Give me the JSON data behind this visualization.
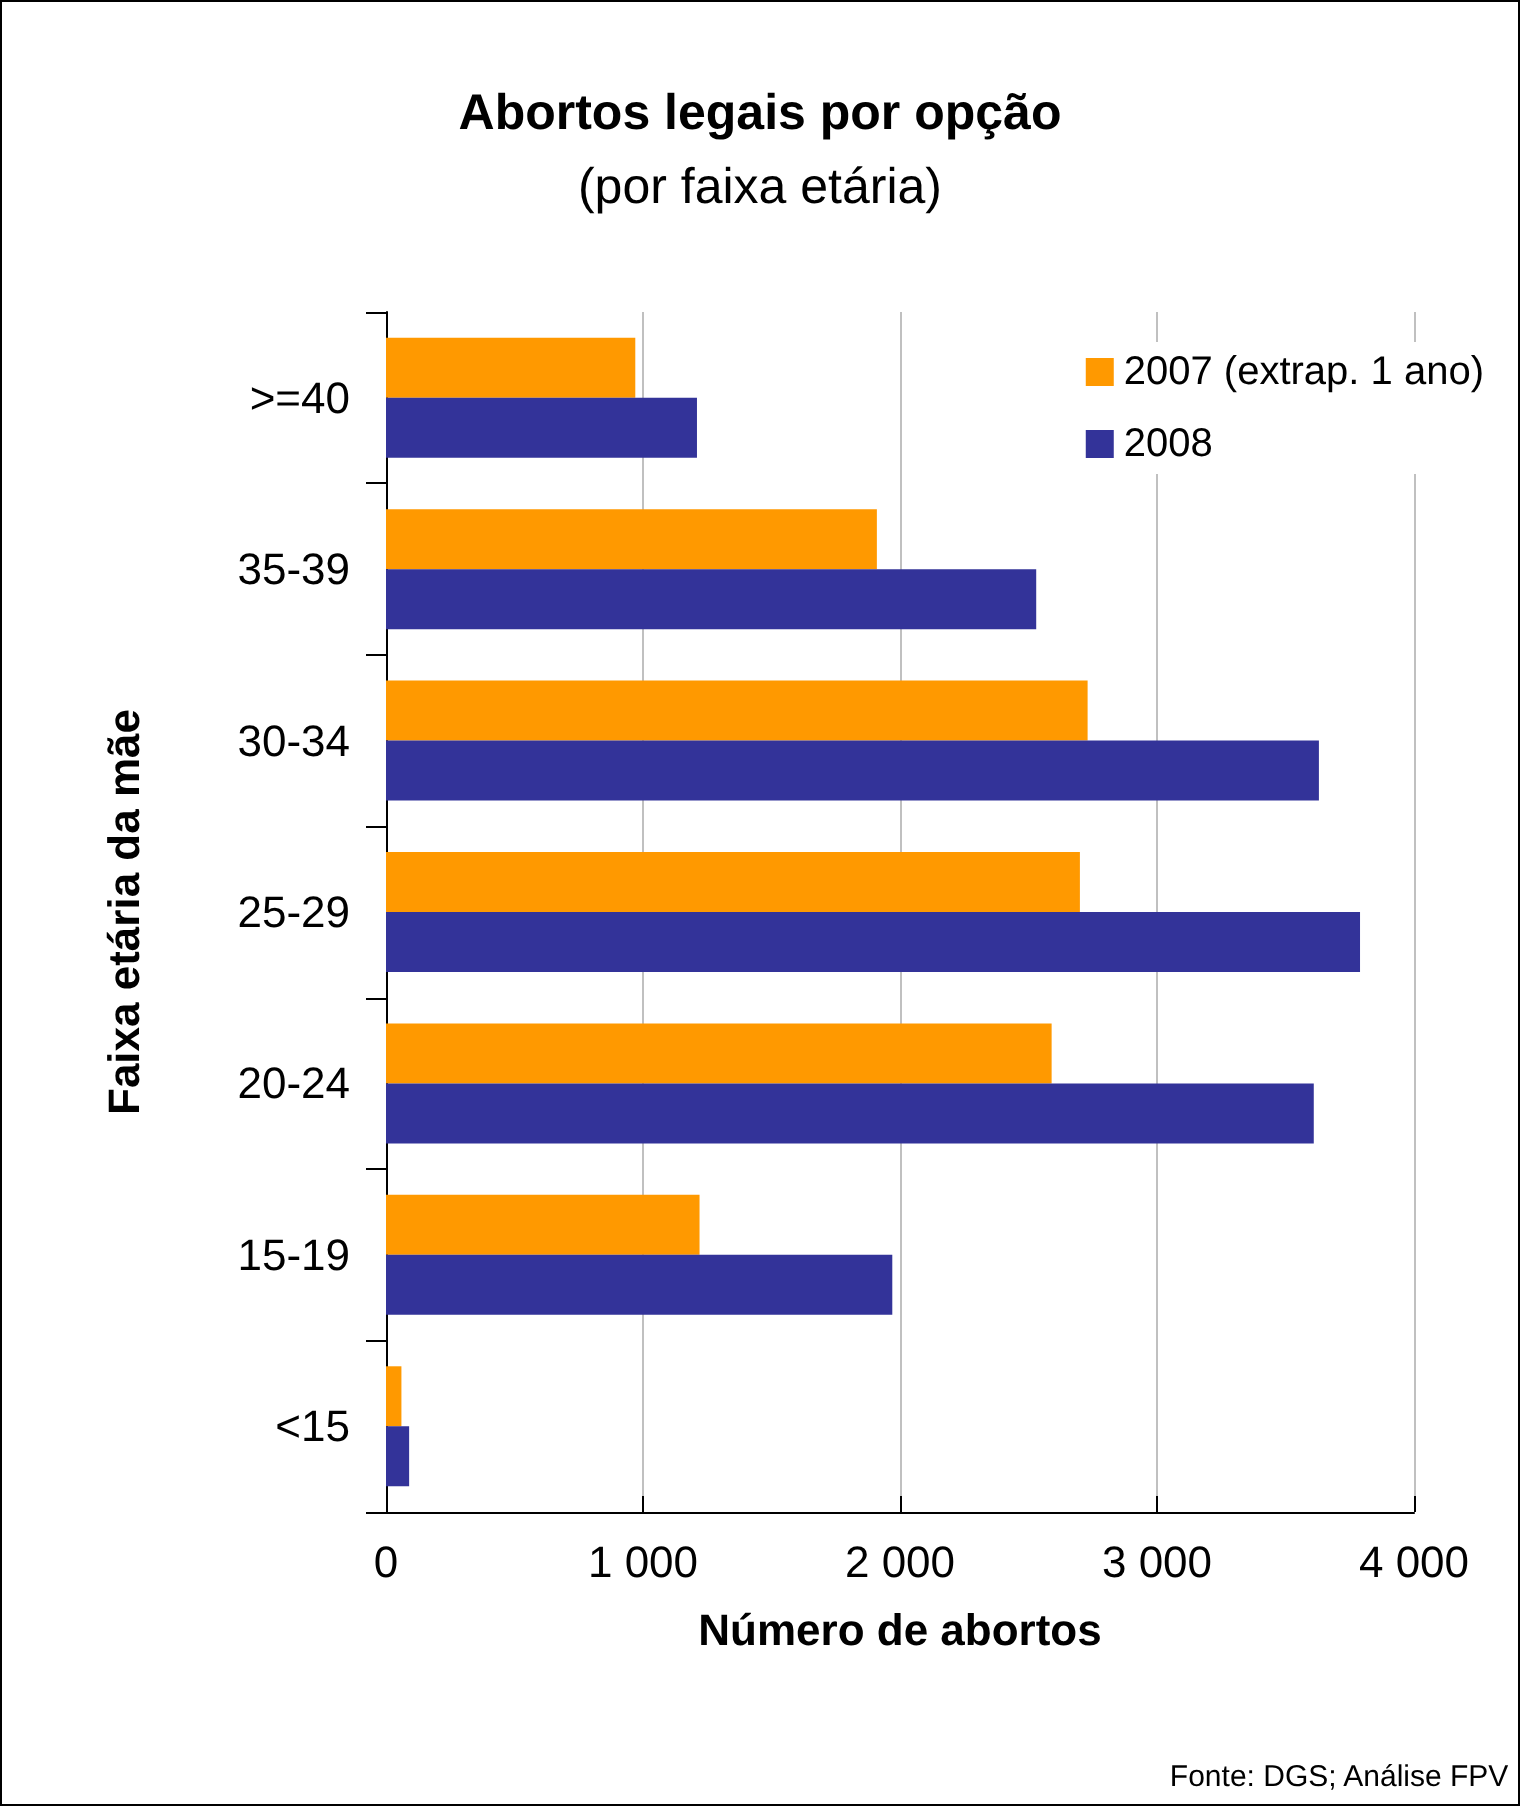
{
  "chart_data": {
    "type": "bar",
    "orientation": "horizontal",
    "title": "Abortos legais por opção",
    "subtitle": "(por faixa etária)",
    "xlabel": "Número de abortos",
    "ylabel": "Faixa etária da mãe",
    "categories": [
      ">=40",
      "35-39",
      "30-34",
      "25-29",
      "20-24",
      "15-19",
      "<15"
    ],
    "series": [
      {
        "name": "2007 (extrap. 1 ano)",
        "color": "#ff9900",
        "values": [
          970,
          1910,
          2730,
          2700,
          2590,
          1220,
          60
        ]
      },
      {
        "name": "2008",
        "color": "#333399",
        "values": [
          1210,
          2530,
          3630,
          3790,
          3610,
          1970,
          90
        ]
      }
    ],
    "xlim": [
      0,
      4000
    ],
    "xticks": [
      0,
      {
        "value": 1000,
        "label": "1 000"
      },
      {
        "value": 2000,
        "label": "2 000"
      },
      {
        "value": 3000,
        "label": "3 000"
      },
      {
        "value": 4000,
        "label": "4 000"
      }
    ],
    "grid": "x",
    "legend": "top right",
    "annotations": [
      "Fonte: DGS; Análise FPV"
    ]
  }
}
